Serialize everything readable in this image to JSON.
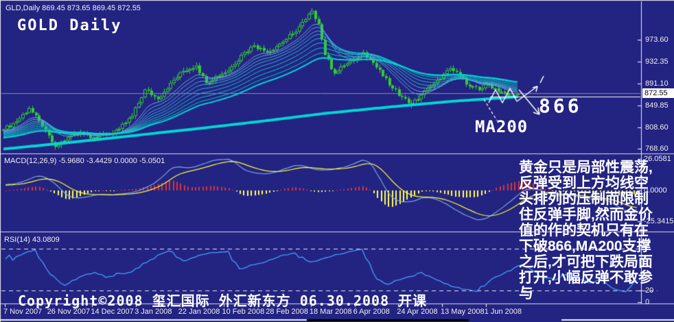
{
  "window": {
    "symbol_info": "GLD,Daily  869.45 873.65 869.45 872.55",
    "title": "GOLD Daily"
  },
  "panels": {
    "price": {
      "current_price_tag": "872.55",
      "price_ticks": [
        {
          "label": "973.60",
          "value": 973.6
        },
        {
          "label": "932.35",
          "value": 932.35
        },
        {
          "label": "891.10",
          "value": 891.1
        },
        {
          "label": "849.85",
          "value": 849.85
        },
        {
          "label": "808.60",
          "value": 808.6
        },
        {
          "label": "768.60",
          "value": 768.6
        }
      ]
    },
    "macd": {
      "label": "MACD(12,26,9) -5.9680 -3.4429 0.0000 -5.0501",
      "ticks": [
        {
          "label": "26.0581",
          "value": 26.0581
        },
        {
          "label": "0.0000",
          "value": 0
        },
        {
          "label": "-25.3415",
          "value": -25.3415
        }
      ]
    },
    "rsi": {
      "label": "RSI(14) 43.0809",
      "ticks": [
        {
          "label": "20",
          "value": 20
        },
        {
          "label": "0",
          "value": 0
        }
      ]
    }
  },
  "date_axis": {
    "labels": [
      "7 Nov 2007",
      "26 Nov 2007",
      "14 Dec 2007",
      "3 Jan 2008",
      "22 Jan 2008",
      "10 Feb 2008",
      "28 Feb 2008",
      "18 Mar 2008",
      "6 Apr 2008",
      "24 Apr 2008",
      "13 May 2008",
      "1 Jun 2008"
    ]
  },
  "annotations": {
    "support_level": "866",
    "ma_label": "MA200",
    "note_lines": [
      "黄金只是局部性震荡,",
      "反弹受到上方均线空",
      "头排列的压制而限制",
      "住反弹手脚,然而金价",
      "值的作的契机只有在",
      "下破866,MA200支撑",
      "之后,才可把下跌局面",
      "打开,小幅反弹不敢参",
      "与"
    ],
    "copyright": "Copyright©2008 玺汇国际 外汇新东方 06.30.2008 开课"
  },
  "chart_data": {
    "type": "candlestick",
    "symbol": "GLD",
    "timeframe": "Daily",
    "last_quote": {
      "open": 869.45,
      "high": 873.65,
      "low": 869.45,
      "close": 872.55
    },
    "title": "GOLD Daily",
    "y_axis": {
      "ticks": [
        973.6,
        932.35,
        891.1,
        849.85,
        808.6,
        768.6
      ],
      "current_price": 872.55
    },
    "x_axis": {
      "tick_labels": [
        "7 Nov 2007",
        "26 Nov 2007",
        "14 Dec 2007",
        "3 Jan 2008",
        "22 Jan 2008",
        "10 Feb 2008",
        "28 Feb 2008",
        "18 Mar 2008",
        "6 Apr 2008",
        "24 Apr 2008",
        "13 May 2008",
        "1 Jun 2008"
      ]
    },
    "candle_count": 161,
    "price_waypoints": [
      [
        0,
        805
      ],
      [
        4,
        820
      ],
      [
        8,
        845
      ],
      [
        12,
        810
      ],
      [
        16,
        772
      ],
      [
        20,
        790
      ],
      [
        24,
        800
      ],
      [
        28,
        790
      ],
      [
        32,
        795
      ],
      [
        36,
        806
      ],
      [
        40,
        830
      ],
      [
        44,
        880
      ],
      [
        48,
        862
      ],
      [
        52,
        892
      ],
      [
        56,
        915
      ],
      [
        60,
        925
      ],
      [
        63,
        892
      ],
      [
        66,
        905
      ],
      [
        70,
        916
      ],
      [
        74,
        945
      ],
      [
        78,
        963
      ],
      [
        82,
        950
      ],
      [
        86,
        966
      ],
      [
        90,
        985
      ],
      [
        94,
        1012
      ],
      [
        96,
        1028
      ],
      [
        98,
        1003
      ],
      [
        100,
        945
      ],
      [
        103,
        910
      ],
      [
        106,
        925
      ],
      [
        109,
        936
      ],
      [
        112,
        950
      ],
      [
        115,
        930
      ],
      [
        118,
        905
      ],
      [
        121,
        882
      ],
      [
        124,
        866
      ],
      [
        127,
        851
      ],
      [
        130,
        870
      ],
      [
        133,
        886
      ],
      [
        136,
        900
      ],
      [
        139,
        920
      ],
      [
        142,
        906
      ],
      [
        145,
        886
      ],
      [
        148,
        879
      ],
      [
        151,
        890
      ],
      [
        154,
        876
      ],
      [
        157,
        867
      ],
      [
        160,
        872.55
      ]
    ],
    "ma200_waypoints": [
      [
        0,
        768
      ],
      [
        20,
        780
      ],
      [
        40,
        793
      ],
      [
        60,
        806
      ],
      [
        80,
        820
      ],
      [
        100,
        835
      ],
      [
        120,
        847
      ],
      [
        140,
        858
      ],
      [
        160,
        866
      ]
    ],
    "support_level": 866,
    "ma_fan_periods": [
      10,
      13,
      17,
      21,
      26,
      32,
      39,
      47,
      55
    ],
    "indicator_tail": [
      868,
      858,
      846,
      836,
      830,
      824,
      820,
      826,
      834,
      841
    ],
    "indicators": {
      "macd": {
        "params": [
          12,
          26,
          9
        ],
        "display_values": [
          -5.968,
          -3.4429,
          0.0,
          -5.0501
        ],
        "axis_ticks": [
          26.0581,
          0.0,
          -25.3415
        ]
      },
      "rsi": {
        "period": 14,
        "value": 43.0809,
        "axis_ticks": [
          20,
          0
        ],
        "levels": [
          91,
          20
        ]
      }
    },
    "render": {
      "noise_amp": 4,
      "wick_amp": 5
    }
  },
  "colors": {
    "bg": "#232382",
    "candle": "#33cc33",
    "ma200": "#00d6d6",
    "ma_fan": [
      "#6aaade",
      "#58aeda",
      "#47b2d6",
      "#37b7d2",
      "#28bcce",
      "#1ac1ca",
      "#0dc7c6",
      "#02cdc2",
      "#00d6d6"
    ],
    "hist_pos": "#dd3333",
    "hist_neg": "#ffff55",
    "macd_line": "#7aa8d8",
    "macd_signal": "#ffff33",
    "rsi": "#44a0f8",
    "price_line": "#8f8f8f",
    "level_line": "#ffffff",
    "chrome": "#d8dae8",
    "axis_text": "#f0f0f0",
    "annotation": "#ffffff"
  }
}
